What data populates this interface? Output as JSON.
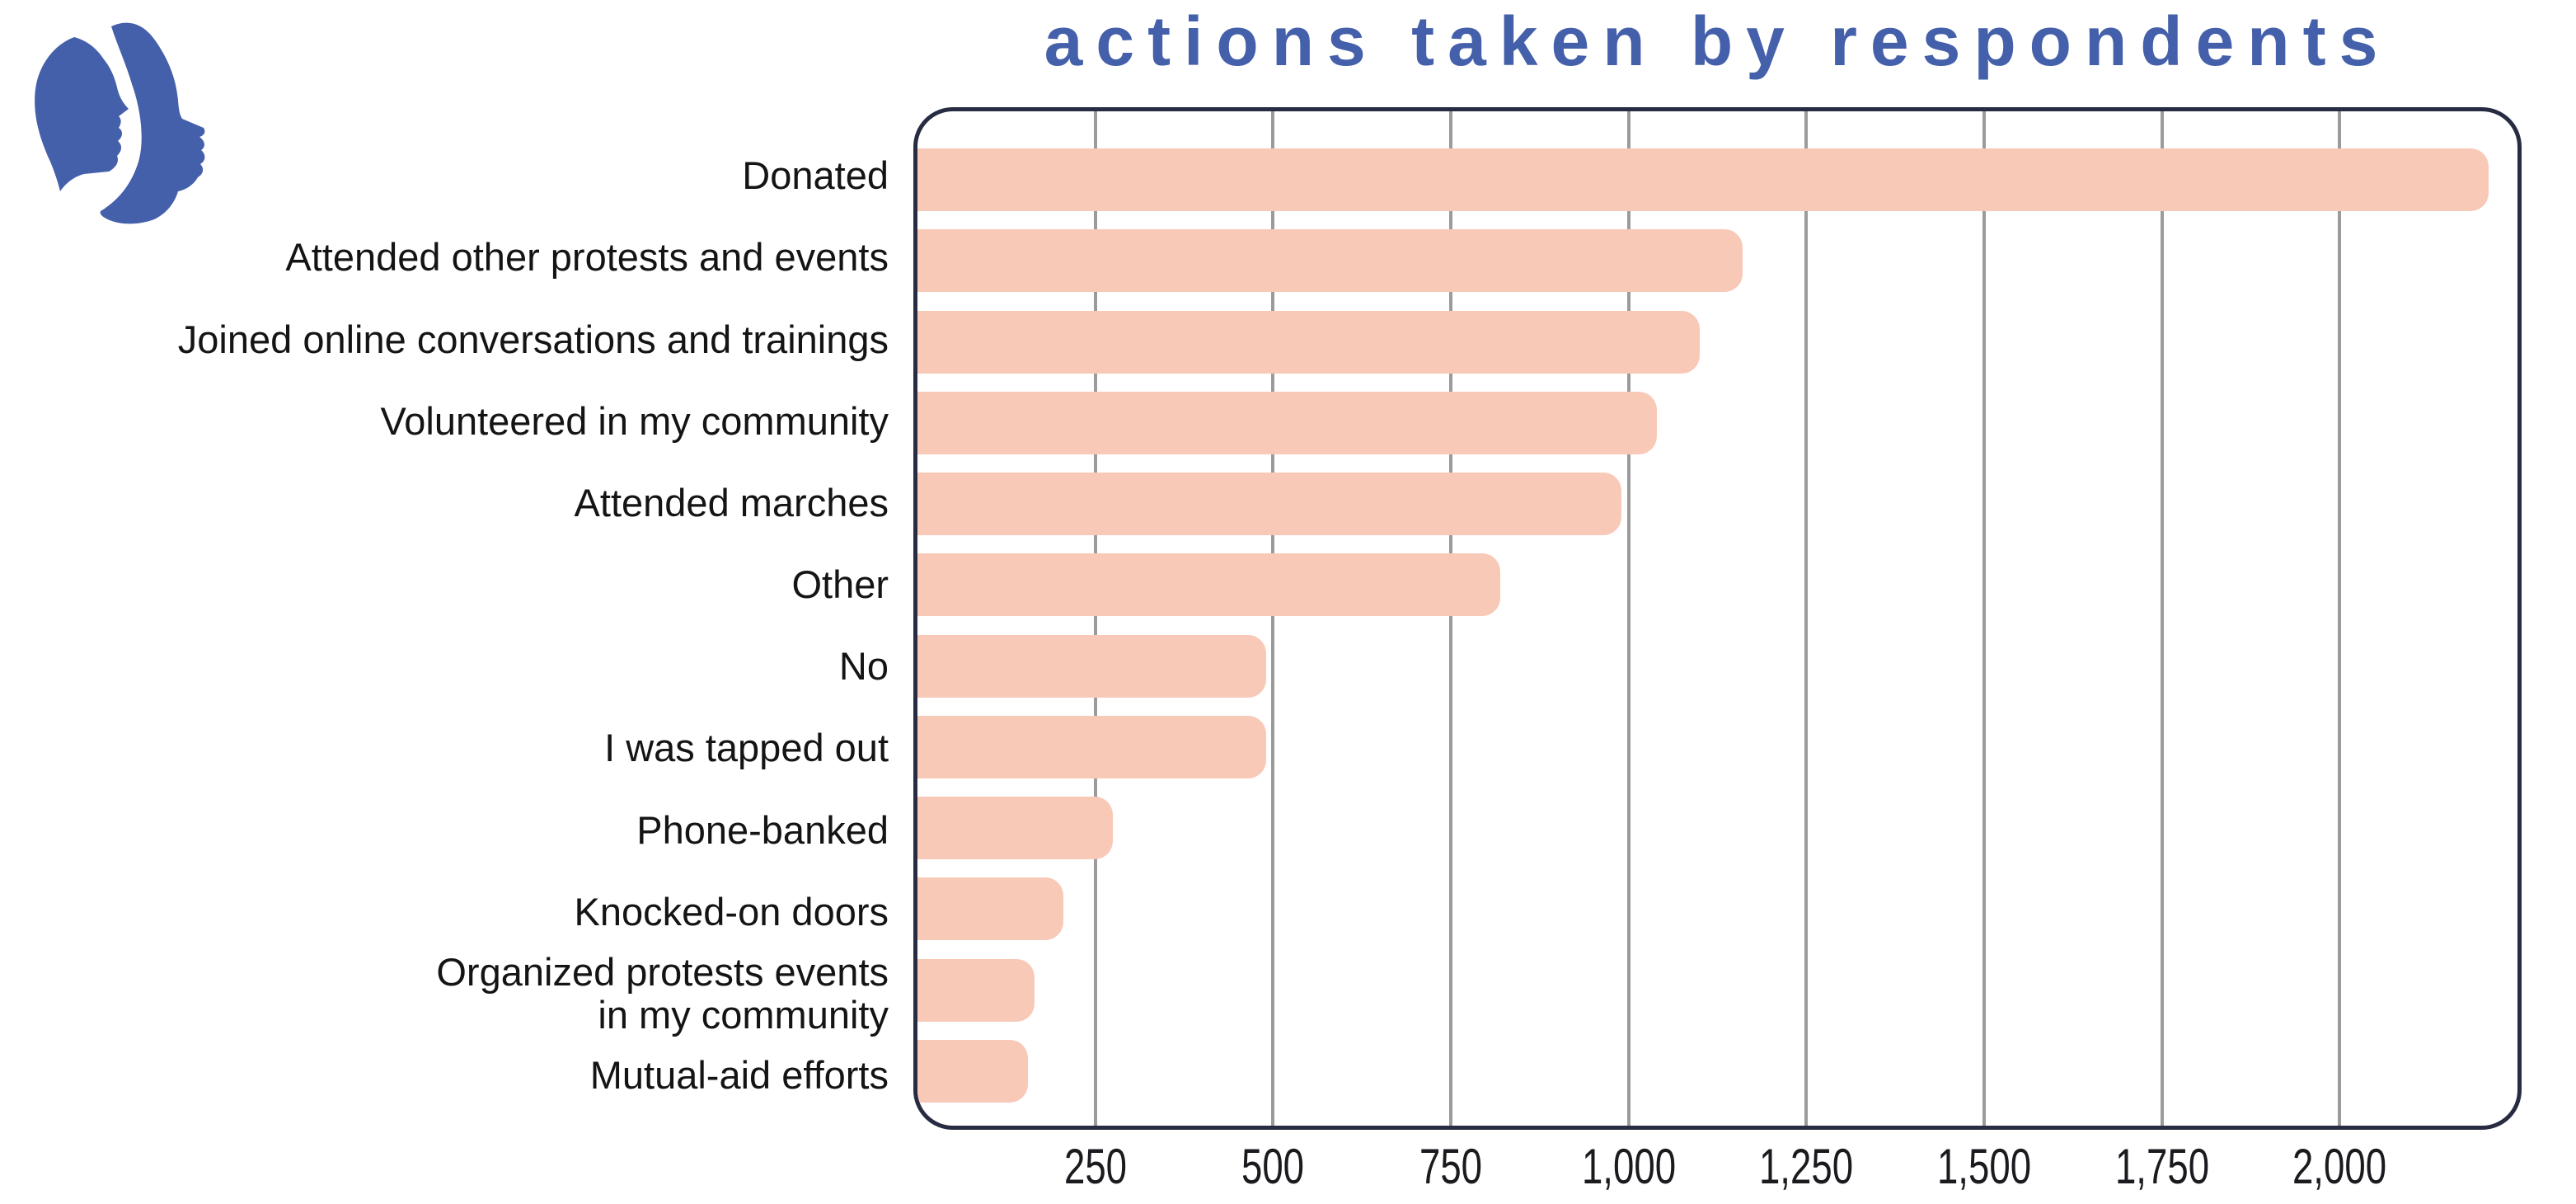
{
  "logo": {
    "icon": "two-face-profiles-logo",
    "color": "#4560aa"
  },
  "header": {
    "title": "actions taken by respondents",
    "title_color": "#4560aa"
  },
  "chart_data": {
    "type": "bar",
    "orientation": "horizontal",
    "title": "actions taken by respondents",
    "categories": [
      "Donated",
      "Attended other protests and events",
      "Joined online conversations and trainings",
      "Volunteered in my community",
      "Attended marches",
      "Other",
      "No",
      "I was tapped out",
      "Phone-banked",
      "Knocked-on doors",
      "Organized protests events\nin my community",
      "Mutual-aid efforts"
    ],
    "values": [
      2210,
      1160,
      1100,
      1040,
      990,
      820,
      490,
      490,
      275,
      205,
      165,
      155
    ],
    "x_tick_labels": [
      "250",
      "500",
      "750",
      "1,000",
      "1,250",
      "1,500",
      "1,750",
      "2,000"
    ],
    "x_tick_values": [
      250,
      500,
      750,
      1000,
      1250,
      1500,
      1750,
      2000
    ],
    "xlim": [
      0,
      2250
    ],
    "xlabel": "",
    "ylabel": "",
    "grid": "vertical",
    "legend": "none",
    "bar_color": "#f9c9b8",
    "grid_color": "#9b9b9b",
    "frame_color": "#282c42",
    "label_color": "#141414"
  }
}
